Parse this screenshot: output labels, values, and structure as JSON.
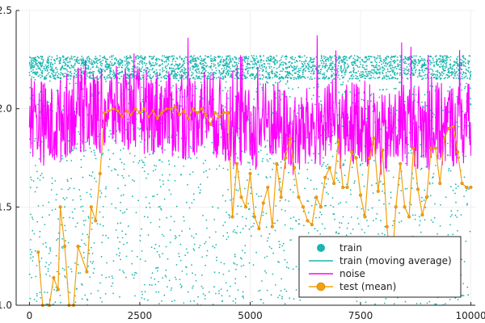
{
  "chart_data": {
    "type": "scatter",
    "xlim": [
      -300,
      10100
    ],
    "ylim": [
      1.0,
      2.5
    ],
    "x_ticks": [
      0,
      2500,
      5000,
      7500,
      10000
    ],
    "x_tick_labels": [
      "0",
      "2500",
      "5000",
      "7500",
      "10000"
    ],
    "y_ticks": [
      1.0,
      1.5,
      2.0,
      2.5
    ],
    "y_tick_labels": [
      "1.0",
      "1.5",
      "2.0",
      "2.5"
    ],
    "grid": true,
    "legend_position": "bottom-right",
    "colors": {
      "train": "#1ab5b0",
      "moving_average": "#1ab5b0",
      "noise": "#ff00ff",
      "test": "#f5a00a",
      "test_edge": "#c87800"
    },
    "series": [
      {
        "name": "train",
        "kind": "scatter",
        "count": 4500,
        "y_range": [
          1.0,
          2.27
        ]
      },
      {
        "name": "train (moving average)",
        "kind": "line"
      },
      {
        "name": "noise",
        "kind": "line",
        "count": 900,
        "baseline": [
          [
            0,
            1.98
          ],
          [
            500,
            1.9
          ],
          [
            1000,
            2.0
          ],
          [
            1500,
            1.98
          ],
          [
            2000,
            2.0
          ],
          [
            3000,
            1.98
          ],
          [
            3500,
            1.95
          ],
          [
            4000,
            2.0
          ],
          [
            4500,
            1.92
          ],
          [
            5000,
            1.88
          ],
          [
            5500,
            1.95
          ],
          [
            6000,
            1.85
          ],
          [
            6500,
            1.92
          ],
          [
            7000,
            1.9
          ],
          [
            7500,
            1.95
          ],
          [
            8000,
            1.85
          ],
          [
            8500,
            1.93
          ],
          [
            9000,
            1.9
          ],
          [
            9500,
            1.92
          ],
          [
            10000,
            1.92
          ]
        ],
        "amplitude": 0.22
      },
      {
        "name": "test (mean)",
        "kind": "line-marker",
        "points": [
          [
            200,
            1.27
          ],
          [
            300,
            1.0
          ],
          [
            450,
            1.0
          ],
          [
            550,
            1.14
          ],
          [
            650,
            1.08
          ],
          [
            700,
            1.5
          ],
          [
            800,
            1.3
          ],
          [
            900,
            1.0
          ],
          [
            1000,
            1.0
          ],
          [
            1100,
            1.3
          ],
          [
            1300,
            1.17
          ],
          [
            1400,
            1.5
          ],
          [
            1500,
            1.43
          ],
          [
            1600,
            1.67
          ],
          [
            1700,
            1.98
          ],
          [
            1800,
            1.99
          ],
          [
            1900,
            2.0
          ],
          [
            2000,
            1.99
          ],
          [
            2100,
            1.96
          ],
          [
            2200,
            1.99
          ],
          [
            2300,
            1.97
          ],
          [
            2400,
            2.0
          ],
          [
            2500,
            1.98
          ],
          [
            2600,
            2.0
          ],
          [
            2700,
            1.96
          ],
          [
            2800,
            1.99
          ],
          [
            2900,
            1.95
          ],
          [
            3000,
            1.98
          ],
          [
            3100,
            2.0
          ],
          [
            3200,
            2.0
          ],
          [
            3300,
            2.01
          ],
          [
            3400,
            1.97
          ],
          [
            3500,
            1.99
          ],
          [
            3600,
            1.95
          ],
          [
            3700,
            2.0
          ],
          [
            3800,
            1.98
          ],
          [
            3900,
            2.0
          ],
          [
            4000,
            1.97
          ],
          [
            4100,
            1.92
          ],
          [
            4200,
            1.98
          ],
          [
            4300,
            1.96
          ],
          [
            4400,
            1.98
          ],
          [
            4500,
            1.98
          ],
          [
            4600,
            1.45
          ],
          [
            4700,
            1.72
          ],
          [
            4800,
            1.55
          ],
          [
            4900,
            1.5
          ],
          [
            5000,
            1.67
          ],
          [
            5100,
            1.45
          ],
          [
            5200,
            1.39
          ],
          [
            5300,
            1.52
          ],
          [
            5400,
            1.6
          ],
          [
            5500,
            1.4
          ],
          [
            5600,
            1.72
          ],
          [
            5700,
            1.55
          ],
          [
            5800,
            1.75
          ],
          [
            5900,
            1.85
          ],
          [
            6000,
            1.7
          ],
          [
            6100,
            1.55
          ],
          [
            6200,
            1.5
          ],
          [
            6300,
            1.43
          ],
          [
            6400,
            1.41
          ],
          [
            6500,
            1.55
          ],
          [
            6600,
            1.5
          ],
          [
            6700,
            1.65
          ],
          [
            6800,
            1.7
          ],
          [
            6900,
            1.62
          ],
          [
            7000,
            1.84
          ],
          [
            7100,
            1.6
          ],
          [
            7200,
            1.6
          ],
          [
            7300,
            1.78
          ],
          [
            7400,
            1.75
          ],
          [
            7500,
            1.56
          ],
          [
            7600,
            1.45
          ],
          [
            7700,
            1.75
          ],
          [
            7800,
            1.85
          ],
          [
            7900,
            1.58
          ],
          [
            8000,
            1.79
          ],
          [
            8100,
            1.4
          ],
          [
            8200,
            1.15
          ],
          [
            8300,
            1.5
          ],
          [
            8400,
            1.72
          ],
          [
            8500,
            1.5
          ],
          [
            8600,
            1.45
          ],
          [
            8700,
            1.8
          ],
          [
            8800,
            1.59
          ],
          [
            8900,
            1.46
          ],
          [
            9000,
            1.55
          ],
          [
            9100,
            1.8
          ],
          [
            9200,
            1.8
          ],
          [
            9300,
            1.62
          ],
          [
            9400,
            1.85
          ],
          [
            9500,
            1.9
          ],
          [
            9600,
            1.91
          ],
          [
            9700,
            1.78
          ],
          [
            9800,
            1.62
          ],
          [
            9900,
            1.6
          ],
          [
            10000,
            1.6
          ]
        ]
      }
    ],
    "legend": {
      "items": [
        {
          "label": "train",
          "symbol": "circle",
          "color": "#1ab5b0"
        },
        {
          "label": "train (moving average)",
          "symbol": "line",
          "color": "#1ab5b0"
        },
        {
          "label": "noise",
          "symbol": "line",
          "color": "#ff00ff"
        },
        {
          "label": "test (mean)",
          "symbol": "line-circle",
          "color": "#f5a00a"
        }
      ]
    }
  }
}
